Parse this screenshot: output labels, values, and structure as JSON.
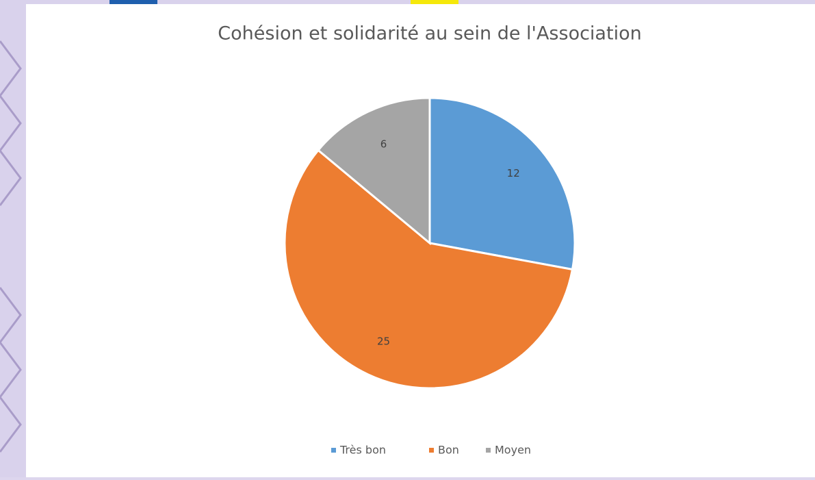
{
  "chart_data": {
    "type": "pie",
    "title": "Cohésion et solidarité au sein de l'Association",
    "categories": [
      "Très bon",
      "Bon",
      "Moyen"
    ],
    "values": [
      12,
      25,
      6
    ],
    "colors": [
      "#5b9bd5",
      "#ed7d31",
      "#a5a5a5"
    ],
    "legend": "bottom"
  }
}
